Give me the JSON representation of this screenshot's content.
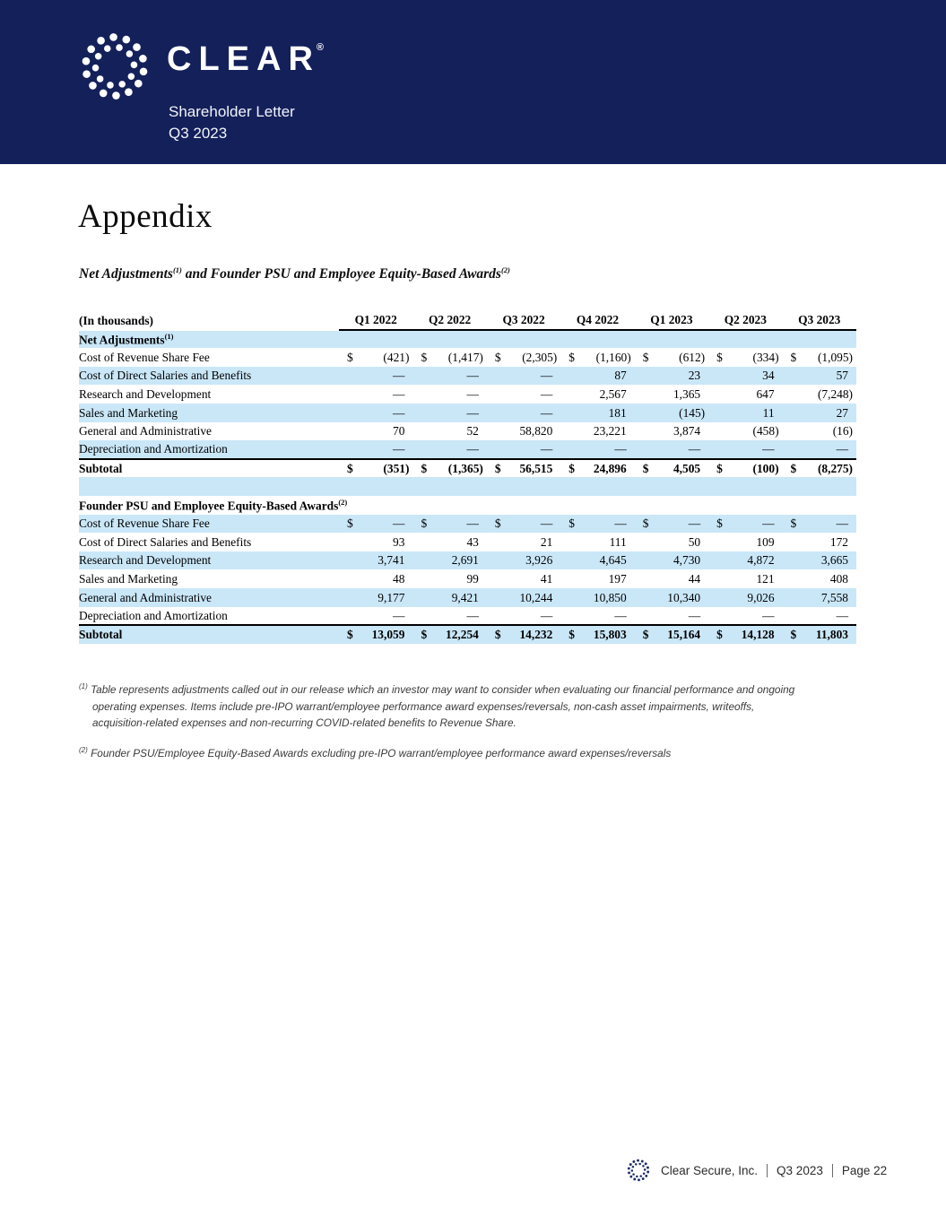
{
  "header": {
    "brand": "CLEAR",
    "registered": "®",
    "subtitle_line1": "Shareholder Letter",
    "subtitle_line2": "Q3 2023"
  },
  "page": {
    "title": "Appendix",
    "section_heading": {
      "part1": "Net Adjustments",
      "sup1": "(1)",
      "part2": " and Founder PSU and Employee Equity-Based Awards",
      "sup2": "(2)"
    }
  },
  "table": {
    "unit_label": "(In thousands)",
    "columns": [
      "Q1 2022",
      "Q2 2022",
      "Q3 2022",
      "Q4 2022",
      "Q1 2023",
      "Q2 2023",
      "Q3 2023"
    ],
    "sections": [
      {
        "title": "Net Adjustments",
        "title_sup": "(1)",
        "rows": [
          {
            "label": "Cost of Revenue Share Fee",
            "dollar": true,
            "values": [
              "(421)",
              "(1,417)",
              "(2,305)",
              "(1,160)",
              "(612)",
              "(334)",
              "(1,095)"
            ]
          },
          {
            "label": "Cost of Direct Salaries and Benefits",
            "dollar": false,
            "values": [
              "—",
              "—",
              "—",
              "87",
              "23",
              "34",
              "57"
            ]
          },
          {
            "label": "Research and Development",
            "dollar": false,
            "values": [
              "—",
              "—",
              "—",
              "2,567",
              "1,365",
              "647",
              "(7,248)"
            ]
          },
          {
            "label": "Sales and Marketing",
            "dollar": false,
            "values": [
              "—",
              "—",
              "—",
              "181",
              "(145)",
              "11",
              "27"
            ]
          },
          {
            "label": "General and Administrative",
            "dollar": false,
            "values": [
              "70",
              "52",
              "58,820",
              "23,221",
              "3,874",
              "(458)",
              "(16)"
            ]
          },
          {
            "label": "Depreciation and Amortization",
            "dollar": false,
            "values": [
              "—",
              "—",
              "—",
              "—",
              "—",
              "—",
              "—"
            ]
          }
        ],
        "subtotal": {
          "label": "Subtotal",
          "dollar": true,
          "values": [
            "(351)",
            "(1,365)",
            "56,515",
            "24,896",
            "4,505",
            "(100)",
            "(8,275)"
          ]
        }
      },
      {
        "title": "Founder PSU and Employee Equity-Based Awards",
        "title_sup": "(2)",
        "rows": [
          {
            "label": "Cost of Revenue Share Fee",
            "dollar": true,
            "values": [
              "—",
              "—",
              "—",
              "—",
              "—",
              "—",
              "—"
            ]
          },
          {
            "label": "Cost of Direct Salaries and Benefits",
            "dollar": false,
            "values": [
              "93",
              "43",
              "21",
              "111",
              "50",
              "109",
              "172"
            ]
          },
          {
            "label": "Research and Development",
            "dollar": false,
            "values": [
              "3,741",
              "2,691",
              "3,926",
              "4,645",
              "4,730",
              "4,872",
              "3,665"
            ]
          },
          {
            "label": "Sales and Marketing",
            "dollar": false,
            "values": [
              "48",
              "99",
              "41",
              "197",
              "44",
              "121",
              "408"
            ]
          },
          {
            "label": "General and Administrative",
            "dollar": false,
            "values": [
              "9,177",
              "9,421",
              "10,244",
              "10,850",
              "10,340",
              "9,026",
              "7,558"
            ]
          },
          {
            "label": "Depreciation and Amortization",
            "dollar": false,
            "values": [
              "—",
              "—",
              "—",
              "—",
              "—",
              "—",
              "—"
            ]
          }
        ],
        "subtotal": {
          "label": "Subtotal",
          "dollar": true,
          "values": [
            "13,059",
            "12,254",
            "14,232",
            "15,803",
            "15,164",
            "14,128",
            "11,803"
          ]
        }
      }
    ]
  },
  "footnotes": [
    {
      "marker": "(1)",
      "text": "Table represents adjustments called out in our release which an investor may want to consider when evaluating our financial performance and ongoing operating expenses. Items include pre-IPO warrant/employee performance award expenses/reversals, non-cash asset impairments, writeoffs, acquisition-related expenses and non-recurring COVID-related benefits to Revenue Share."
    },
    {
      "marker": "(2)",
      "text": "Founder PSU/Employee Equity-Based Awards excluding pre-IPO warrant/employee performance award expenses/reversals"
    }
  ],
  "footer": {
    "company": "Clear Secure, Inc.",
    "quarter": "Q3 2023",
    "page": "Page 22"
  },
  "colors": {
    "navy": "#14205A",
    "row_blue": "#CAE7F8"
  }
}
